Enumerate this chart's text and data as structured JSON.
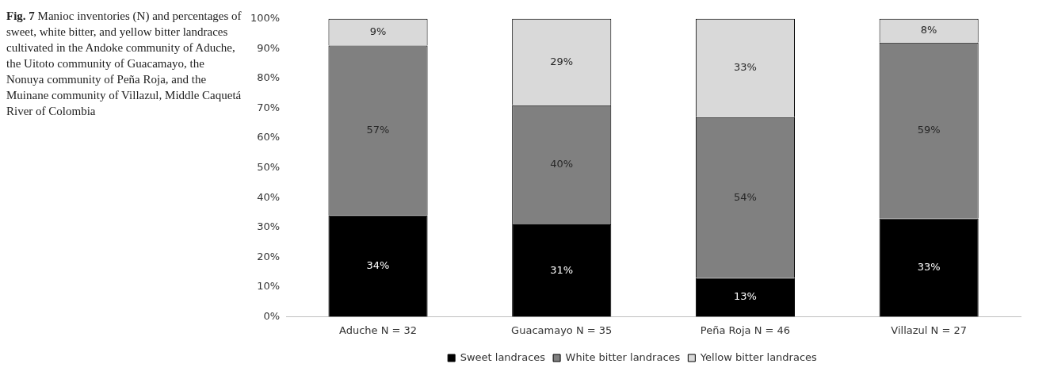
{
  "chart_data": {
    "type": "bar",
    "stacked": true,
    "title": "Fig. 7",
    "subtitle": "Manioc inventories (N) and percentages of sweet, white bitter, and yellow bitter landraces cultivated in the Andoke community of Aduche, the Uitoto community of Guacamayo, the Nonuya community of Peña Roja, and the Muinane community of Villazul, Middle Caquetá River of Colombia",
    "categories": [
      "Aduche N = 32",
      "Guacamayo N = 35",
      "Peña Roja N = 46",
      "Villazul N = 27"
    ],
    "series": [
      {
        "name": "Sweet landraces",
        "color": "#000000",
        "values": [
          34,
          31,
          13,
          33
        ],
        "value_labels": [
          "34%",
          "31%",
          "13%",
          "33%"
        ]
      },
      {
        "name": "White bitter landraces",
        "color": "#808080",
        "values": [
          57,
          40,
          54,
          59
        ],
        "value_labels": [
          "57%",
          "40%",
          "54%",
          "59%"
        ]
      },
      {
        "name": "Yellow bitter landraces",
        "color": "#d9d9d9",
        "values": [
          9,
          29,
          33,
          8
        ],
        "value_labels": [
          "9%",
          "29%",
          "33%",
          "8%"
        ]
      }
    ],
    "ylim": [
      0,
      100
    ],
    "yticks": [
      {
        "value": 0,
        "label": "0%"
      },
      {
        "value": 10,
        "label": "10%"
      },
      {
        "value": 20,
        "label": "20%"
      },
      {
        "value": 30,
        "label": "30%"
      },
      {
        "value": 40,
        "label": "40%"
      },
      {
        "value": 50,
        "label": "50%"
      },
      {
        "value": 60,
        "label": "60%"
      },
      {
        "value": 70,
        "label": "70%"
      },
      {
        "value": 80,
        "label": "80%"
      },
      {
        "value": 90,
        "label": "90%"
      },
      {
        "value": 100,
        "label": "100%"
      }
    ],
    "grid": false,
    "legend": "bottom"
  }
}
